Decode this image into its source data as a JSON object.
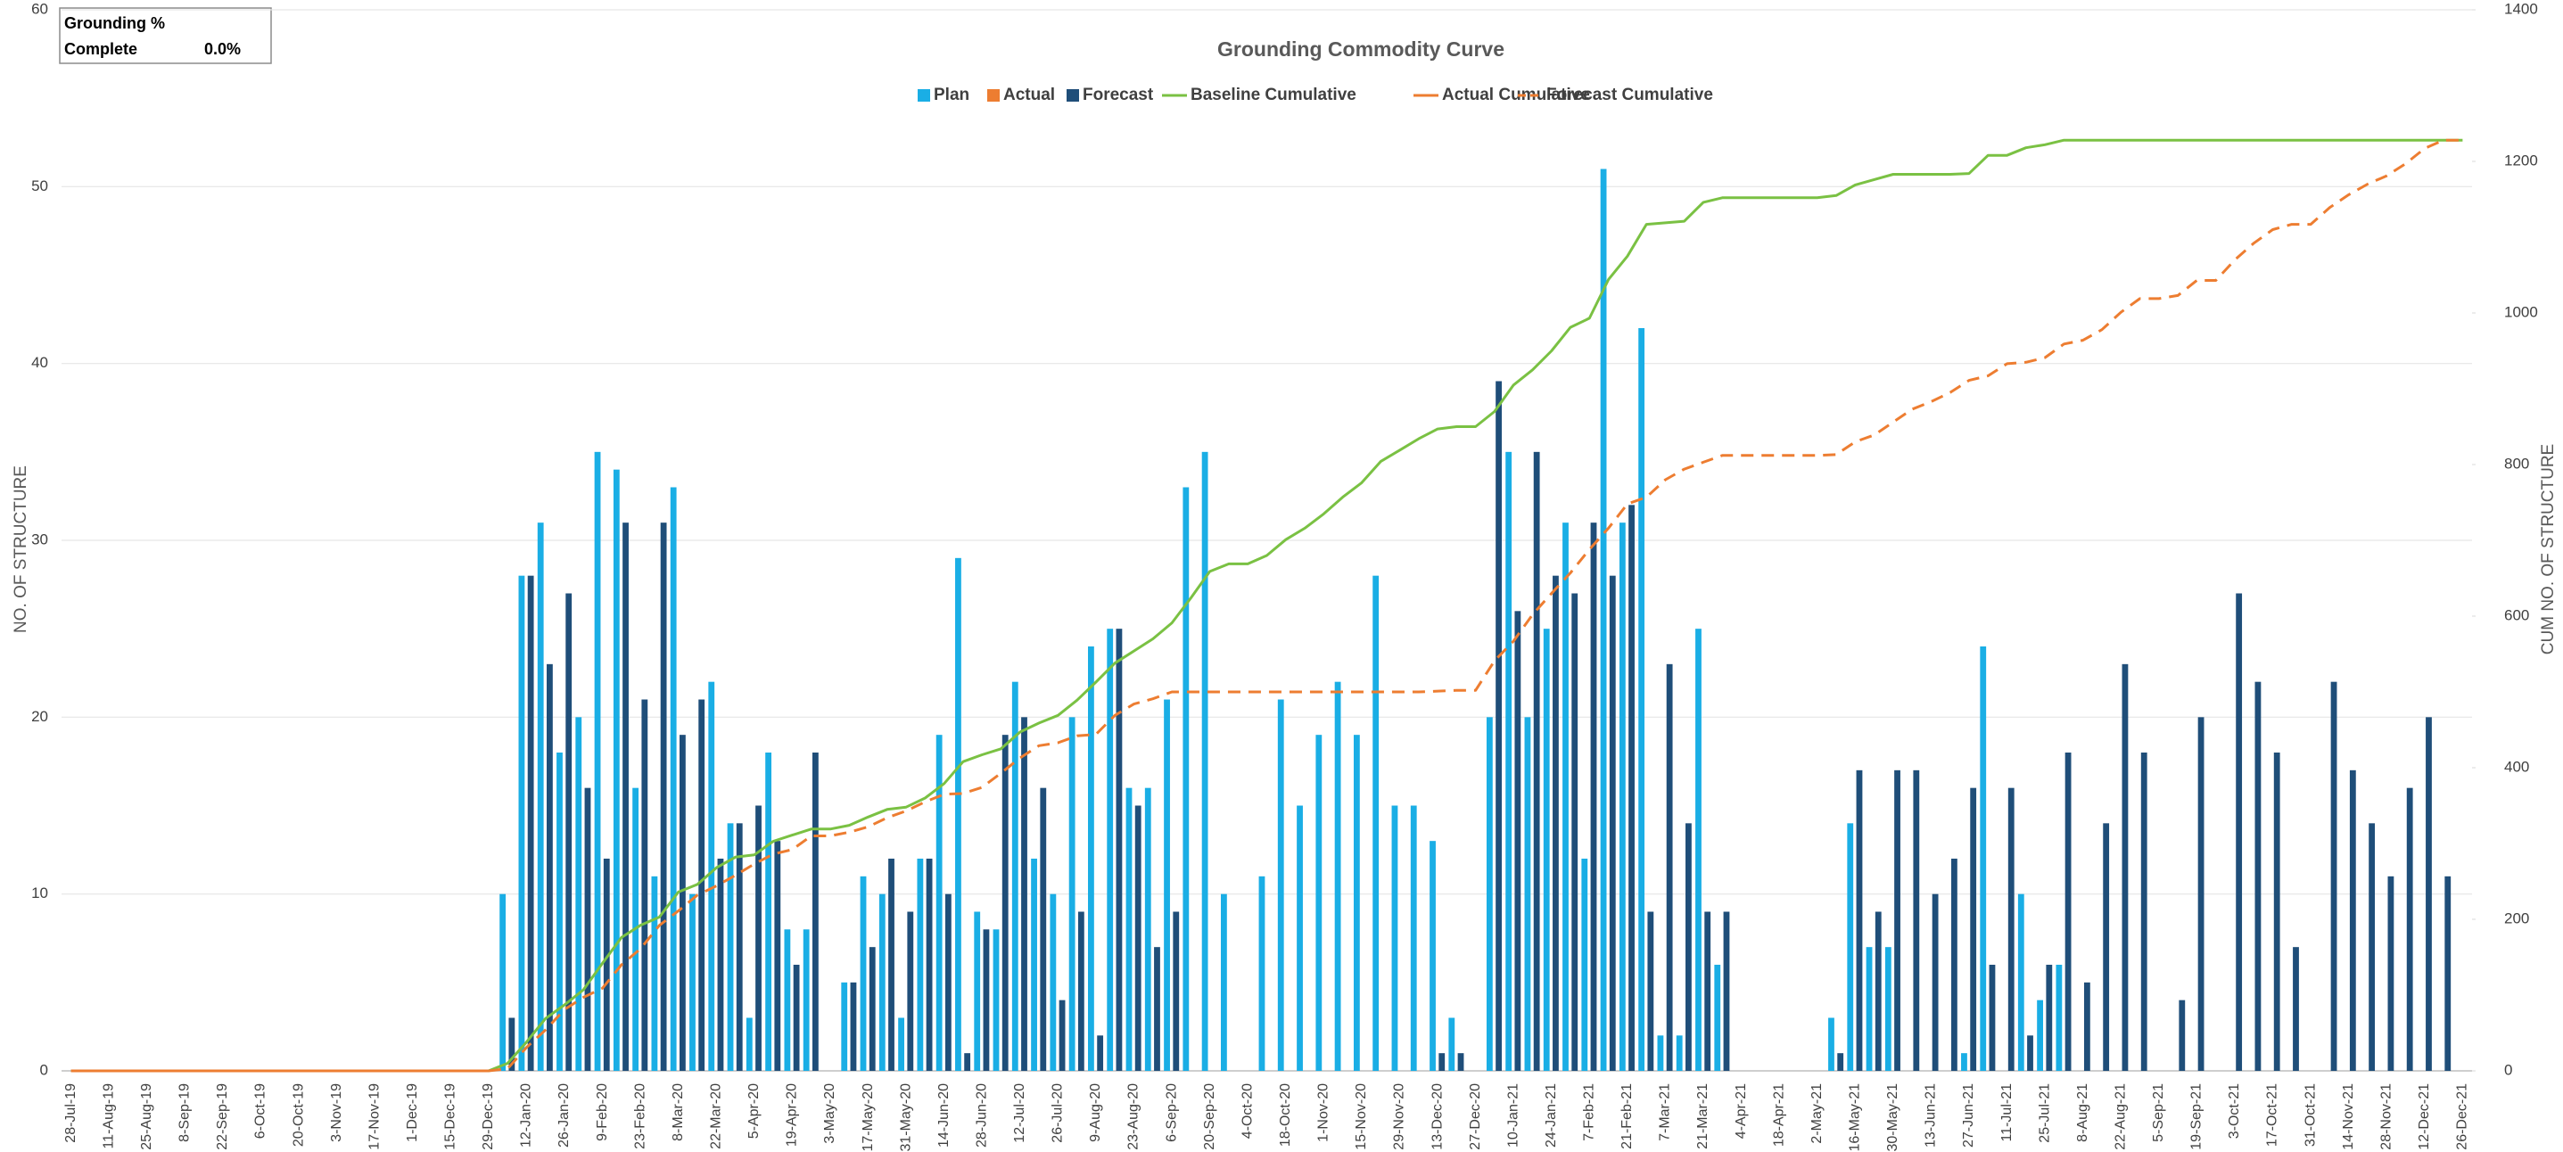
{
  "chart_data": {
    "type": "bar",
    "title": "Grounding Commodity Curve",
    "info_box": {
      "label": "Grounding %",
      "sublabel": "Complete",
      "value": {
        "value": 0,
        "label": "0.0%"
      }
    },
    "ylabel": "NO. OF STRUCTURE",
    "y2label": "CUM NO. OF STRUCTURE",
    "ylim": [
      0,
      60
    ],
    "yticks": [
      0,
      10,
      20,
      30,
      40,
      50,
      60
    ],
    "y2lim": [
      0,
      1400
    ],
    "y2ticks": [
      0,
      200,
      400,
      600,
      800,
      1000,
      1200,
      1400
    ],
    "grid": true,
    "legend": "top",
    "categories": [
      "28-Jul-19",
      null,
      "11-Aug-19",
      null,
      "25-Aug-19",
      null,
      "8-Sep-19",
      null,
      "22-Sep-19",
      null,
      "6-Oct-19",
      null,
      "20-Oct-19",
      null,
      "3-Nov-19",
      null,
      "17-Nov-19",
      null,
      "1-Dec-19",
      null,
      "15-Dec-19",
      null,
      "29-Dec-19",
      null,
      "12-Jan-20",
      null,
      "26-Jan-20",
      null,
      "9-Feb-20",
      null,
      "23-Feb-20",
      null,
      "8-Mar-20",
      null,
      "22-Mar-20",
      null,
      "5-Apr-20",
      null,
      "19-Apr-20",
      null,
      "3-May-20",
      null,
      "17-May-20",
      null,
      "31-May-20",
      null,
      "14-Jun-20",
      null,
      "28-Jun-20",
      null,
      "12-Jul-20",
      null,
      "26-Jul-20",
      null,
      "9-Aug-20",
      null,
      "23-Aug-20",
      null,
      "6-Sep-20",
      null,
      "20-Sep-20",
      null,
      "4-Oct-20",
      null,
      "18-Oct-20",
      null,
      "1-Nov-20",
      null,
      "15-Nov-20",
      null,
      "29-Nov-20",
      null,
      "13-Dec-20",
      null,
      "27-Dec-20",
      null,
      "10-Jan-21",
      null,
      "24-Jan-21",
      null,
      "7-Feb-21",
      null,
      "21-Feb-21",
      null,
      "7-Mar-21",
      null,
      "21-Mar-21",
      null,
      "4-Apr-21",
      null,
      "18-Apr-21",
      null,
      "2-May-21",
      null,
      "16-May-21",
      null,
      "30-May-21",
      null,
      "13-Jun-21",
      null,
      "27-Jun-21",
      null,
      "11-Jul-21",
      null,
      "25-Jul-21",
      null,
      "8-Aug-21",
      null,
      "22-Aug-21",
      null,
      "5-Sep-21",
      null,
      "19-Sep-21",
      null,
      "3-Oct-21",
      null,
      "17-Oct-21",
      null,
      "31-Oct-21",
      null,
      "14-Nov-21",
      null,
      "28-Nov-21",
      null,
      "12-Dec-21",
      null,
      "26-Dec-21"
    ],
    "series": [
      {
        "name": "Plan",
        "kind": "bar",
        "color": "#1aaee5",
        "values": [
          0,
          0,
          0,
          0,
          0,
          0,
          0,
          0,
          0,
          0,
          0,
          0,
          0,
          0,
          0,
          0,
          0,
          0,
          0,
          0,
          0,
          0,
          0,
          10,
          28,
          31,
          18,
          20,
          35,
          34,
          16,
          11,
          33,
          10,
          22,
          14,
          3,
          18,
          8,
          8,
          0,
          5,
          11,
          10,
          3,
          12,
          19,
          29,
          9,
          8,
          22,
          12,
          10,
          20,
          24,
          25,
          16,
          16,
          21,
          33,
          35,
          10,
          0,
          11,
          21,
          15,
          19,
          22,
          19,
          28,
          15,
          15,
          13,
          3,
          0,
          20,
          35,
          20,
          25,
          31,
          12,
          51,
          31,
          42,
          2,
          2,
          25,
          6,
          0,
          0,
          0,
          0,
          0,
          3,
          14,
          7,
          7,
          0,
          0,
          0,
          1,
          24,
          0,
          10,
          4,
          6,
          0,
          0,
          0,
          0,
          0,
          0,
          0,
          0,
          0,
          0,
          0,
          0,
          0,
          0,
          0,
          0,
          0,
          0,
          0,
          0,
          0
        ]
      },
      {
        "name": "Actual",
        "kind": "bar",
        "color": "#ed7d31",
        "values": [
          0,
          0,
          0,
          0,
          0,
          0,
          0,
          0,
          0,
          0,
          0,
          0,
          0,
          0,
          0,
          0,
          0,
          0,
          0,
          0,
          0,
          0,
          0,
          0,
          0,
          0,
          0,
          0,
          0,
          0,
          0,
          0,
          0,
          0,
          0,
          0,
          0,
          0,
          0,
          0,
          0,
          0,
          0,
          0,
          0,
          0,
          0,
          0,
          0,
          0,
          0,
          0,
          0,
          0,
          0,
          0,
          0,
          0,
          0,
          0,
          0,
          0,
          0,
          0,
          0,
          0,
          0,
          0,
          0,
          0,
          0,
          0,
          0,
          0,
          0,
          0,
          0,
          0,
          0,
          0,
          0,
          0,
          0,
          0,
          0,
          0,
          0,
          0,
          0,
          0,
          0,
          0,
          0,
          0,
          0,
          0,
          0,
          0,
          0,
          0,
          0,
          0,
          0,
          0,
          0,
          0,
          0,
          0,
          0,
          0,
          0,
          0,
          0,
          0,
          0,
          0,
          0,
          0,
          0,
          0,
          0,
          0,
          0,
          0,
          0,
          0,
          0
        ]
      },
      {
        "name": "Forecast",
        "kind": "bar",
        "color": "#1f4e79",
        "values": [
          0,
          0,
          0,
          0,
          0,
          0,
          0,
          0,
          0,
          0,
          0,
          0,
          0,
          0,
          0,
          0,
          0,
          0,
          0,
          0,
          0,
          0,
          0,
          3,
          28,
          23,
          27,
          16,
          12,
          31,
          21,
          31,
          19,
          21,
          12,
          14,
          15,
          13,
          6,
          18,
          0,
          5,
          7,
          12,
          9,
          12,
          10,
          1,
          8,
          19,
          20,
          16,
          4,
          9,
          2,
          25,
          15,
          7,
          9,
          0,
          0,
          0,
          0,
          0,
          0,
          0,
          0,
          0,
          0,
          0,
          0,
          0,
          1,
          1,
          0,
          39,
          26,
          35,
          28,
          27,
          31,
          28,
          32,
          9,
          23,
          14,
          9,
          9,
          0,
          0,
          0,
          0,
          0,
          1,
          17,
          9,
          17,
          17,
          10,
          12,
          16,
          6,
          16,
          2,
          6,
          18,
          5,
          14,
          23,
          18,
          0,
          4,
          20,
          0,
          27,
          22,
          18,
          7,
          0,
          22,
          17,
          14,
          11,
          16,
          20,
          11,
          0
        ]
      },
      {
        "name": "Baseline Cumulative",
        "kind": "line",
        "axis": "y2",
        "color": "#7ac143",
        "dash": false,
        "values": [
          0,
          0,
          0,
          0,
          0,
          0,
          0,
          0,
          0,
          0,
          0,
          0,
          0,
          0,
          0,
          0,
          0,
          0,
          0,
          0,
          0,
          0,
          0,
          10,
          38,
          69,
          87,
          107,
          142,
          176,
          192,
          203,
          236,
          246,
          268,
          282,
          285,
          303,
          311,
          319,
          319,
          324,
          335,
          345,
          348,
          360,
          379,
          408,
          417,
          425,
          447,
          459,
          469,
          489,
          513,
          538,
          554,
          570,
          591,
          624,
          659,
          669,
          669,
          680,
          701,
          716,
          735,
          757,
          776,
          804,
          819,
          834,
          847,
          850,
          850,
          870,
          905,
          925,
          950,
          981,
          993,
          1044,
          1075,
          1117,
          1119,
          1121,
          1146,
          1152,
          1152,
          1152,
          1152,
          1152,
          1152,
          1155,
          1169,
          1176,
          1183,
          1183,
          1183,
          1183,
          1184,
          1208,
          1208,
          1218,
          1222,
          1228,
          1228,
          1228,
          1228,
          1228,
          1228,
          1228,
          1228,
          1228,
          1228,
          1228,
          1228,
          1228,
          1228,
          1228,
          1228,
          1228,
          1228,
          1228,
          1228,
          1228,
          1228
        ]
      },
      {
        "name": "Actual Cumulative",
        "kind": "line",
        "axis": "y2",
        "color": "#ed7d31",
        "dash": false,
        "values": [
          0,
          0,
          0,
          0,
          0,
          0,
          0,
          0,
          0,
          0,
          0,
          0,
          0,
          0,
          0,
          0,
          0,
          0,
          0,
          0,
          0,
          0,
          0,
          null,
          null,
          null,
          null,
          null,
          null,
          null,
          null,
          null,
          null,
          null,
          null,
          null,
          null,
          null,
          null,
          null,
          null,
          null,
          null,
          null,
          null,
          null,
          null,
          null,
          null,
          null,
          null,
          null,
          null,
          null,
          null,
          null,
          null,
          null,
          null,
          null,
          null,
          null,
          null,
          null,
          null,
          null,
          null,
          null,
          null,
          null,
          null,
          null,
          null,
          null,
          null,
          null,
          null,
          null,
          null,
          null,
          null,
          null,
          null,
          null,
          null,
          null,
          null,
          null,
          null,
          null,
          null,
          null,
          null,
          null,
          null,
          null,
          null,
          null,
          null,
          null,
          null,
          null,
          null,
          null,
          null,
          null,
          null,
          null,
          null,
          null,
          null,
          null,
          null,
          null,
          null,
          null,
          null,
          null,
          null,
          null,
          null,
          null,
          null,
          null,
          null,
          null,
          null
        ]
      },
      {
        "name": "Forecast Cumulative",
        "kind": "line",
        "axis": "y2",
        "color": "#ed7d31",
        "dash": true,
        "values": [
          null,
          null,
          null,
          null,
          null,
          null,
          null,
          null,
          null,
          null,
          null,
          null,
          null,
          null,
          null,
          null,
          null,
          null,
          null,
          null,
          null,
          null,
          0,
          3,
          31,
          54,
          81,
          97,
          109,
          140,
          161,
          192,
          211,
          232,
          244,
          258,
          273,
          286,
          292,
          310,
          310,
          315,
          322,
          334,
          343,
          355,
          365,
          366,
          374,
          393,
          413,
          429,
          433,
          442,
          444,
          469,
          484,
          491,
          500,
          500,
          500,
          500,
          500,
          500,
          500,
          500,
          500,
          500,
          500,
          500,
          500,
          500,
          501,
          502,
          502,
          541,
          567,
          602,
          630,
          657,
          688,
          716,
          748,
          757,
          780,
          794,
          803,
          812,
          812,
          812,
          812,
          812,
          812,
          813,
          830,
          839,
          856,
          873,
          883,
          895,
          911,
          917,
          933,
          935,
          941,
          959,
          964,
          978,
          1001,
          1019,
          1019,
          1023,
          1043,
          1043,
          1070,
          1092,
          1110,
          1117,
          1117,
          1139,
          1156,
          1170,
          1181,
          1197,
          1217,
          1228,
          1228
        ]
      }
    ]
  }
}
